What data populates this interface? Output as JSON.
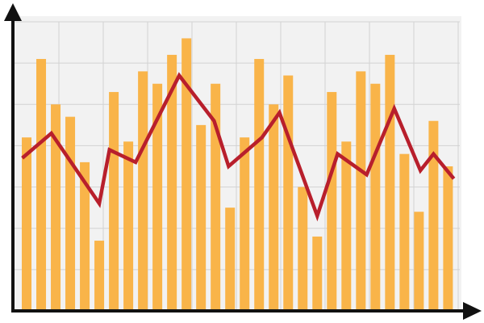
{
  "chart_data": {
    "type": "bar",
    "x": [
      1,
      2,
      3,
      4,
      5,
      6,
      7,
      8,
      9,
      10,
      11,
      12,
      13,
      14,
      15,
      16,
      17,
      18,
      19,
      20,
      21,
      22,
      23,
      24,
      25,
      26,
      27,
      28,
      29,
      30
    ],
    "xlim": [
      0,
      30.7
    ],
    "ylim": [
      0,
      7
    ],
    "yticks": [
      0,
      1,
      2,
      3,
      4,
      5,
      6,
      7
    ],
    "grid": true,
    "series": [
      {
        "type": "bar",
        "color": "#f9b449",
        "values": [
          4.2,
          6.1,
          5.0,
          4.7,
          3.6,
          1.7,
          5.3,
          4.1,
          5.8,
          5.5,
          6.2,
          6.6,
          4.5,
          5.5,
          2.5,
          4.2,
          6.1,
          5.0,
          5.7,
          3.0,
          1.8,
          5.3,
          4.1,
          5.8,
          5.5,
          6.2,
          3.8,
          2.4,
          4.6,
          3.5
        ]
      },
      {
        "type": "line",
        "color": "#b81f2c",
        "x": [
          0.7,
          2.7,
          6.0,
          6.7,
          8.5,
          11.5,
          13.9,
          14.9,
          17.2,
          18.4,
          21.0,
          22.4,
          24.4,
          26.3,
          28.1,
          29.0,
          30.4
        ],
        "values": [
          3.7,
          4.3,
          2.6,
          3.9,
          3.6,
          5.7,
          4.6,
          3.5,
          4.2,
          4.8,
          2.3,
          3.8,
          3.3,
          4.9,
          3.4,
          3.8,
          3.2
        ]
      }
    ]
  }
}
